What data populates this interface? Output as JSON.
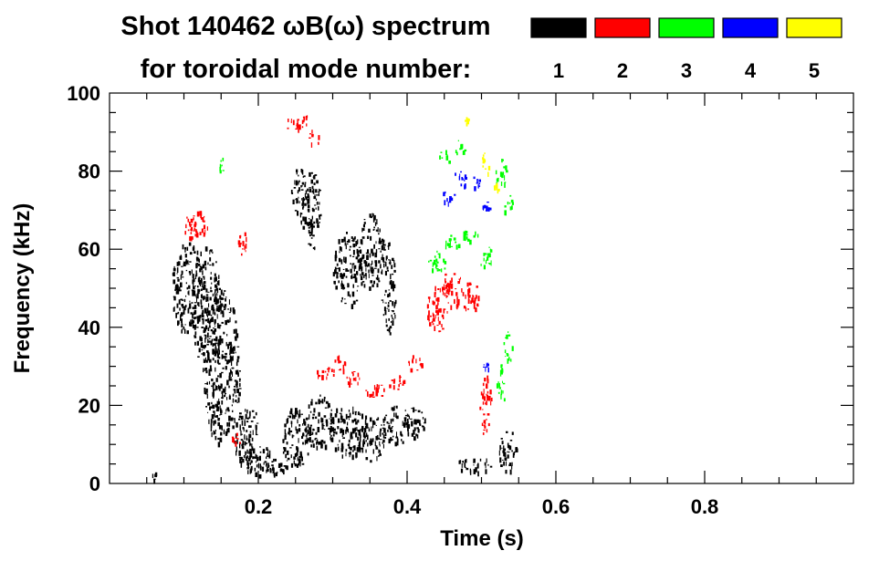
{
  "chart_data": {
    "type": "scatter",
    "title_line1": "Shot 140462 ωB(ω) spectrum",
    "title_line2": "for toroidal mode number:",
    "xlabel": "Time (s)",
    "ylabel": "Frequency (kHz)",
    "xlim": [
      0.0,
      1.0
    ],
    "ylim": [
      0,
      100
    ],
    "x_major_ticks": [
      0.2,
      0.4,
      0.6,
      0.8
    ],
    "x_tick_labels": [
      "0.2",
      "0.4",
      "0.6",
      "0.8"
    ],
    "y_major_ticks": [
      0,
      20,
      40,
      60,
      80,
      100
    ],
    "y_tick_labels": [
      "0",
      "20",
      "40",
      "60",
      "80",
      "100"
    ],
    "grid": false,
    "legend_placement": "top-right",
    "series": [
      {
        "name": "1",
        "color": "#000000",
        "blobs": [
          {
            "x": 0.105,
            "y": 50,
            "dx": 0.022,
            "dy": 12
          },
          {
            "x": 0.13,
            "y": 45,
            "dx": 0.02,
            "dy": 16
          },
          {
            "x": 0.15,
            "y": 30,
            "dx": 0.025,
            "dy": 20
          },
          {
            "x": 0.185,
            "y": 12,
            "dx": 0.018,
            "dy": 8
          },
          {
            "x": 0.2,
            "y": 6,
            "dx": 0.025,
            "dy": 4
          },
          {
            "x": 0.22,
            "y": 4,
            "dx": 0.02,
            "dy": 2
          },
          {
            "x": 0.255,
            "y": 75,
            "dx": 0.012,
            "dy": 6
          },
          {
            "x": 0.27,
            "y": 70,
            "dx": 0.015,
            "dy": 10
          },
          {
            "x": 0.25,
            "y": 12,
            "dx": 0.02,
            "dy": 8
          },
          {
            "x": 0.28,
            "y": 16,
            "dx": 0.02,
            "dy": 7
          },
          {
            "x": 0.32,
            "y": 14,
            "dx": 0.025,
            "dy": 7
          },
          {
            "x": 0.35,
            "y": 12,
            "dx": 0.02,
            "dy": 6
          },
          {
            "x": 0.385,
            "y": 15,
            "dx": 0.02,
            "dy": 5
          },
          {
            "x": 0.41,
            "y": 16,
            "dx": 0.015,
            "dy": 4
          },
          {
            "x": 0.32,
            "y": 55,
            "dx": 0.02,
            "dy": 10
          },
          {
            "x": 0.35,
            "y": 60,
            "dx": 0.02,
            "dy": 10
          },
          {
            "x": 0.375,
            "y": 50,
            "dx": 0.01,
            "dy": 12
          },
          {
            "x": 0.49,
            "y": 5,
            "dx": 0.025,
            "dy": 2
          },
          {
            "x": 0.535,
            "y": 8,
            "dx": 0.012,
            "dy": 6
          },
          {
            "x": 0.06,
            "y": 2,
            "dx": 0.003,
            "dy": 1
          }
        ]
      },
      {
        "name": "2",
        "color": "#ff0000",
        "blobs": [
          {
            "x": 0.12,
            "y": 67,
            "dx": 0.015,
            "dy": 3
          },
          {
            "x": 0.108,
            "y": 66,
            "dx": 0.01,
            "dy": 3
          },
          {
            "x": 0.178,
            "y": 62,
            "dx": 0.006,
            "dy": 4
          },
          {
            "x": 0.245,
            "y": 92,
            "dx": 0.01,
            "dy": 2
          },
          {
            "x": 0.26,
            "y": 93,
            "dx": 0.008,
            "dy": 2
          },
          {
            "x": 0.275,
            "y": 89,
            "dx": 0.008,
            "dy": 2
          },
          {
            "x": 0.29,
            "y": 29,
            "dx": 0.012,
            "dy": 2
          },
          {
            "x": 0.31,
            "y": 31,
            "dx": 0.01,
            "dy": 2
          },
          {
            "x": 0.33,
            "y": 27,
            "dx": 0.012,
            "dy": 2
          },
          {
            "x": 0.355,
            "y": 24,
            "dx": 0.015,
            "dy": 2
          },
          {
            "x": 0.385,
            "y": 26,
            "dx": 0.012,
            "dy": 2
          },
          {
            "x": 0.41,
            "y": 31,
            "dx": 0.012,
            "dy": 2
          },
          {
            "x": 0.44,
            "y": 45,
            "dx": 0.015,
            "dy": 6
          },
          {
            "x": 0.46,
            "y": 50,
            "dx": 0.015,
            "dy": 5
          },
          {
            "x": 0.485,
            "y": 48,
            "dx": 0.012,
            "dy": 4
          },
          {
            "x": 0.505,
            "y": 20,
            "dx": 0.008,
            "dy": 8
          },
          {
            "x": 0.17,
            "y": 12,
            "dx": 0.006,
            "dy": 2
          }
        ]
      },
      {
        "name": "3",
        "color": "#00ff00",
        "blobs": [
          {
            "x": 0.44,
            "y": 57,
            "dx": 0.012,
            "dy": 3
          },
          {
            "x": 0.46,
            "y": 62,
            "dx": 0.012,
            "dy": 2
          },
          {
            "x": 0.485,
            "y": 64,
            "dx": 0.012,
            "dy": 2
          },
          {
            "x": 0.505,
            "y": 58,
            "dx": 0.01,
            "dy": 3
          },
          {
            "x": 0.45,
            "y": 84,
            "dx": 0.008,
            "dy": 2
          },
          {
            "x": 0.47,
            "y": 86,
            "dx": 0.008,
            "dy": 2
          },
          {
            "x": 0.525,
            "y": 80,
            "dx": 0.008,
            "dy": 4
          },
          {
            "x": 0.535,
            "y": 72,
            "dx": 0.006,
            "dy": 3
          },
          {
            "x": 0.525,
            "y": 25,
            "dx": 0.006,
            "dy": 6
          },
          {
            "x": 0.535,
            "y": 35,
            "dx": 0.006,
            "dy": 4
          },
          {
            "x": 0.15,
            "y": 82,
            "dx": 0.004,
            "dy": 2
          }
        ]
      },
      {
        "name": "4",
        "color": "#0000ff",
        "blobs": [
          {
            "x": 0.455,
            "y": 74,
            "dx": 0.008,
            "dy": 2
          },
          {
            "x": 0.47,
            "y": 78,
            "dx": 0.01,
            "dy": 2
          },
          {
            "x": 0.49,
            "y": 77,
            "dx": 0.008,
            "dy": 2
          },
          {
            "x": 0.505,
            "y": 71,
            "dx": 0.006,
            "dy": 2
          },
          {
            "x": 0.505,
            "y": 30,
            "dx": 0.004,
            "dy": 1
          }
        ]
      },
      {
        "name": "5",
        "color": "#ffff00",
        "blobs": [
          {
            "x": 0.48,
            "y": 93,
            "dx": 0.003,
            "dy": 1
          },
          {
            "x": 0.505,
            "y": 82,
            "dx": 0.006,
            "dy": 3
          },
          {
            "x": 0.52,
            "y": 77,
            "dx": 0.004,
            "dy": 2
          }
        ]
      }
    ]
  }
}
